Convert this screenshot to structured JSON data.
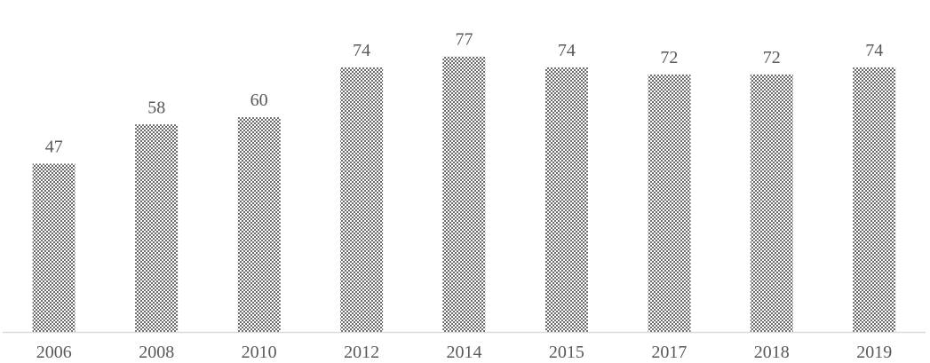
{
  "chart_data": {
    "type": "bar",
    "categories": [
      "2006",
      "2008",
      "2010",
      "2012",
      "2014",
      "2015",
      "2017",
      "2018",
      "2019"
    ],
    "values": [
      47,
      58,
      60,
      74,
      77,
      74,
      72,
      72,
      74
    ],
    "data_labels": [
      "47",
      "58",
      "60",
      "74",
      "77",
      "74",
      "72",
      "72",
      "74"
    ],
    "title": "",
    "xlabel": "",
    "ylabel": "",
    "ylim": [
      0,
      80
    ],
    "grid": false,
    "legend": "none",
    "bar_pattern": "dotted",
    "colors": {
      "bar_fill": "#ffffff",
      "bar_dots": "#000000",
      "axis_line": "#d9d9d9",
      "label_text": "#595959"
    }
  }
}
